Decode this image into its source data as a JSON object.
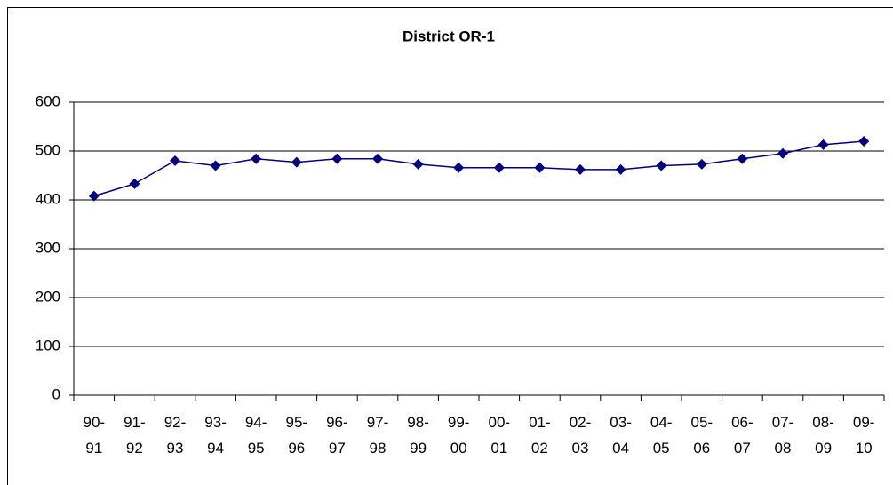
{
  "chart_data": {
    "type": "line",
    "title": "District OR-1",
    "categories": [
      "90-91",
      "91-92",
      "92-93",
      "93-94",
      "94-95",
      "95-96",
      "96-97",
      "97-98",
      "98-99",
      "99-00",
      "00-01",
      "01-02",
      "02-03",
      "03-04",
      "04-05",
      "05-06",
      "06-07",
      "07-08",
      "08-09",
      "09-10"
    ],
    "series": [
      {
        "color": "#000080",
        "values": [
          408,
          433,
          480,
          470,
          484,
          477,
          484,
          484,
          473,
          466,
          466,
          466,
          462,
          462,
          470,
          473,
          484,
          495,
          513,
          520
        ]
      }
    ],
    "ylim": [
      0,
      600
    ],
    "yticks": [
      0,
      100,
      200,
      300,
      400,
      500,
      600
    ],
    "grid": true
  }
}
